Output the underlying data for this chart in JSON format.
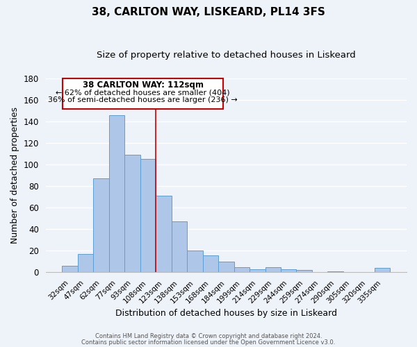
{
  "title": "38, CARLTON WAY, LISKEARD, PL14 3FS",
  "subtitle": "Size of property relative to detached houses in Liskeard",
  "xlabel": "Distribution of detached houses by size in Liskeard",
  "ylabel": "Number of detached properties",
  "categories": [
    "32sqm",
    "47sqm",
    "62sqm",
    "77sqm",
    "93sqm",
    "108sqm",
    "123sqm",
    "138sqm",
    "153sqm",
    "168sqm",
    "184sqm",
    "199sqm",
    "214sqm",
    "229sqm",
    "244sqm",
    "259sqm",
    "274sqm",
    "290sqm",
    "305sqm",
    "320sqm",
    "335sqm"
  ],
  "values": [
    6,
    17,
    87,
    146,
    109,
    105,
    71,
    47,
    20,
    16,
    10,
    5,
    3,
    5,
    3,
    2,
    0,
    1,
    0,
    0,
    4
  ],
  "bar_color": "#aec6e8",
  "bar_edge_color": "#5a9fd4",
  "bar_width": 1.0,
  "ylim": [
    0,
    180
  ],
  "yticks": [
    0,
    20,
    40,
    60,
    80,
    100,
    120,
    140,
    160,
    180
  ],
  "vline_x": 5.5,
  "vline_color": "#cc0000",
  "annotation_title": "38 CARLTON WAY: 112sqm",
  "annotation_line1": "← 62% of detached houses are smaller (404)",
  "annotation_line2": "36% of semi-detached houses are larger (236) →",
  "background_color": "#eef2f9",
  "grid_color": "#ffffff",
  "footer_line1": "Contains HM Land Registry data © Crown copyright and database right 2024.",
  "footer_line2": "Contains public sector information licensed under the Open Government Licence v3.0."
}
